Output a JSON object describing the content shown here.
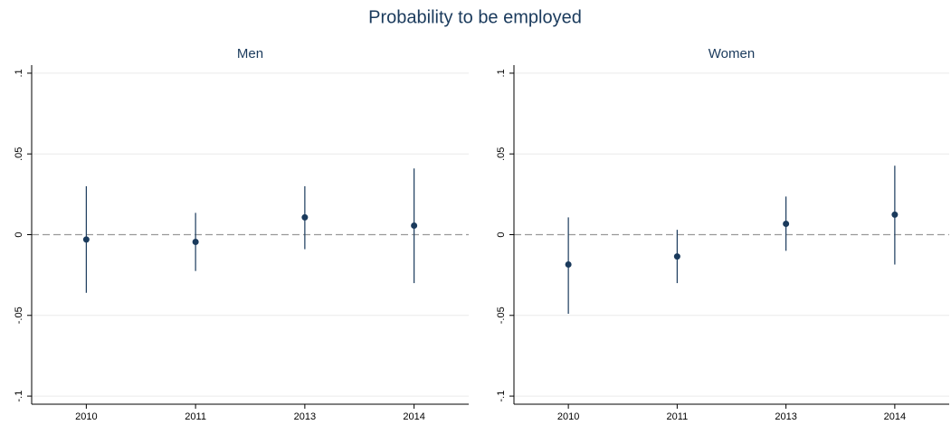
{
  "title": "Probability to be employed",
  "chart_data": [
    {
      "type": "errorbar",
      "title": "Men",
      "categories": [
        "2010",
        "2011",
        "2013",
        "2014"
      ],
      "values": [
        -0.003,
        -0.0045,
        0.0107,
        0.0056
      ],
      "lower": [
        -0.036,
        -0.0225,
        -0.009,
        -0.03
      ],
      "upper": [
        0.03,
        0.0135,
        0.03,
        0.041
      ],
      "color": "#1a3a5c",
      "ylim": [
        -0.105,
        0.105
      ],
      "yticks": [
        {
          "value": 0.1,
          "label": ".1"
        },
        {
          "value": 0.05,
          "label": ".05"
        },
        0,
        {
          "value": -0.05,
          "label": "-.05"
        },
        {
          "value": -0.1,
          "label": "-.1"
        }
      ],
      "grid": true,
      "yline": 0
    },
    {
      "type": "errorbar",
      "title": "Women",
      "categories": [
        "2010",
        "2011",
        "2013",
        "2014"
      ],
      "values": [
        -0.0185,
        -0.0135,
        0.0067,
        0.0124
      ],
      "lower": [
        -0.049,
        -0.03,
        -0.01,
        -0.0185
      ],
      "upper": [
        0.0107,
        0.003,
        0.0236,
        0.0427
      ],
      "color": "#1a3a5c",
      "ylim": [
        -0.105,
        0.105
      ],
      "yticks": [
        {
          "value": 0.1,
          "label": ".1"
        },
        {
          "value": 0.05,
          "label": ".05"
        },
        0,
        {
          "value": -0.05,
          "label": "-.05"
        },
        {
          "value": -0.1,
          "label": "-.1"
        }
      ],
      "grid": true,
      "yline": 0
    }
  ]
}
